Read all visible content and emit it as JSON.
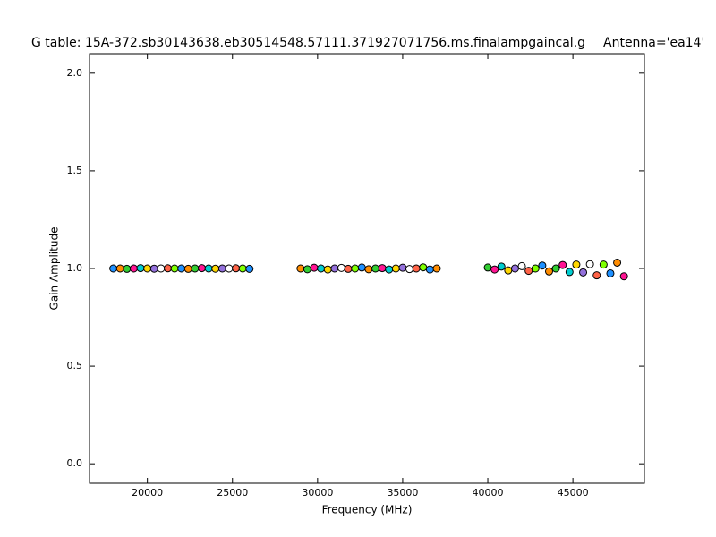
{
  "chart_data": {
    "type": "scatter",
    "title": "G table: 15A-372.sb30143638.eb30514548.57111.371927071756.ms.finalampgaincal.g",
    "subtitle": "Antenna='ea14'",
    "x_label": "Frequency (MHz)",
    "y_label": "Gain Amplitude",
    "xlim": [
      16600,
      49200
    ],
    "ylim": [
      -0.1,
      2.1
    ],
    "xticks": [
      20000,
      25000,
      30000,
      35000,
      40000,
      45000
    ],
    "yticks": [
      {
        "value": 0,
        "label": "0.0"
      },
      0.5,
      {
        "value": 1,
        "label": "1.0"
      },
      1.5,
      {
        "value": 2,
        "label": "2.0"
      }
    ],
    "x": [
      18000,
      18400,
      18800,
      19200,
      19600,
      20000,
      20400,
      20800,
      21200,
      21600,
      22000,
      22400,
      22800,
      23200,
      23600,
      24000,
      24400,
      24800,
      25200,
      25600,
      26000,
      29000,
      29400,
      29800,
      30200,
      30600,
      31000,
      31400,
      31800,
      32200,
      32600,
      33000,
      33400,
      33800,
      34200,
      34600,
      35000,
      35400,
      35800,
      36200,
      36600,
      37000,
      40000,
      40400,
      40800,
      41200,
      41600,
      42000,
      42400,
      42800,
      43200,
      43600,
      44000,
      44400,
      44800,
      45200,
      45600,
      46000,
      46400,
      46800,
      47200,
      47600,
      48000
    ],
    "series": [
      {
        "values": [
          1.0,
          1.0,
          0.998,
          1.0,
          1.002,
          1.0,
          0.999,
          1.0,
          1.001,
          1.0,
          1.0,
          0.998,
          1.0,
          1.002,
          1.0,
          0.999,
          1.0,
          1.0,
          1.001,
          1.0,
          0.998,
          1.0,
          0.996,
          1.004,
          1.0,
          0.995,
          1.0,
          1.003,
          0.998,
          1.0,
          1.005,
          0.996,
          1.0,
          1.002,
          0.995,
          1.0,
          1.004,
          0.997,
          1.0,
          1.006,
          0.995,
          1.0,
          1.005,
          0.995,
          1.01,
          0.99,
          1.0,
          1.012,
          0.988,
          1.0,
          1.015,
          0.985,
          1.0,
          1.018,
          0.982,
          1.02,
          0.98,
          1.022,
          0.965,
          1.02,
          0.975,
          1.03,
          0.96
        ],
        "colors": [
          "#1e90ff",
          "#ff8c00",
          "#32cd32",
          "#ff1493",
          "#00ced1",
          "#ffd700",
          "#9370db",
          "#ffffff",
          "#ff6347",
          "#7fff00",
          "#1e90ff",
          "#ff8c00",
          "#32cd32",
          "#ff1493",
          "#00ced1",
          "#ffd700",
          "#9370db",
          "#ffffff",
          "#ff6347",
          "#7fff00",
          "#1e90ff",
          "#ff8c00",
          "#32cd32",
          "#ff1493",
          "#00ced1",
          "#ffd700",
          "#9370db",
          "#ffffff",
          "#ff6347",
          "#7fff00",
          "#1e90ff",
          "#ff8c00",
          "#32cd32",
          "#ff1493",
          "#00ced1",
          "#ffd700",
          "#9370db",
          "#ffffff",
          "#ff6347",
          "#7fff00",
          "#1e90ff",
          "#ff8c00",
          "#32cd32",
          "#ff1493",
          "#00ced1",
          "#ffd700",
          "#9370db",
          "#ffffff",
          "#ff6347",
          "#7fff00",
          "#1e90ff",
          "#ff8c00",
          "#32cd32",
          "#ff1493",
          "#00ced1",
          "#ffd700",
          "#9370db",
          "#ffffff",
          "#ff6347",
          "#7fff00",
          "#1e90ff",
          "#ff8c00",
          "#ff1493"
        ]
      }
    ]
  }
}
